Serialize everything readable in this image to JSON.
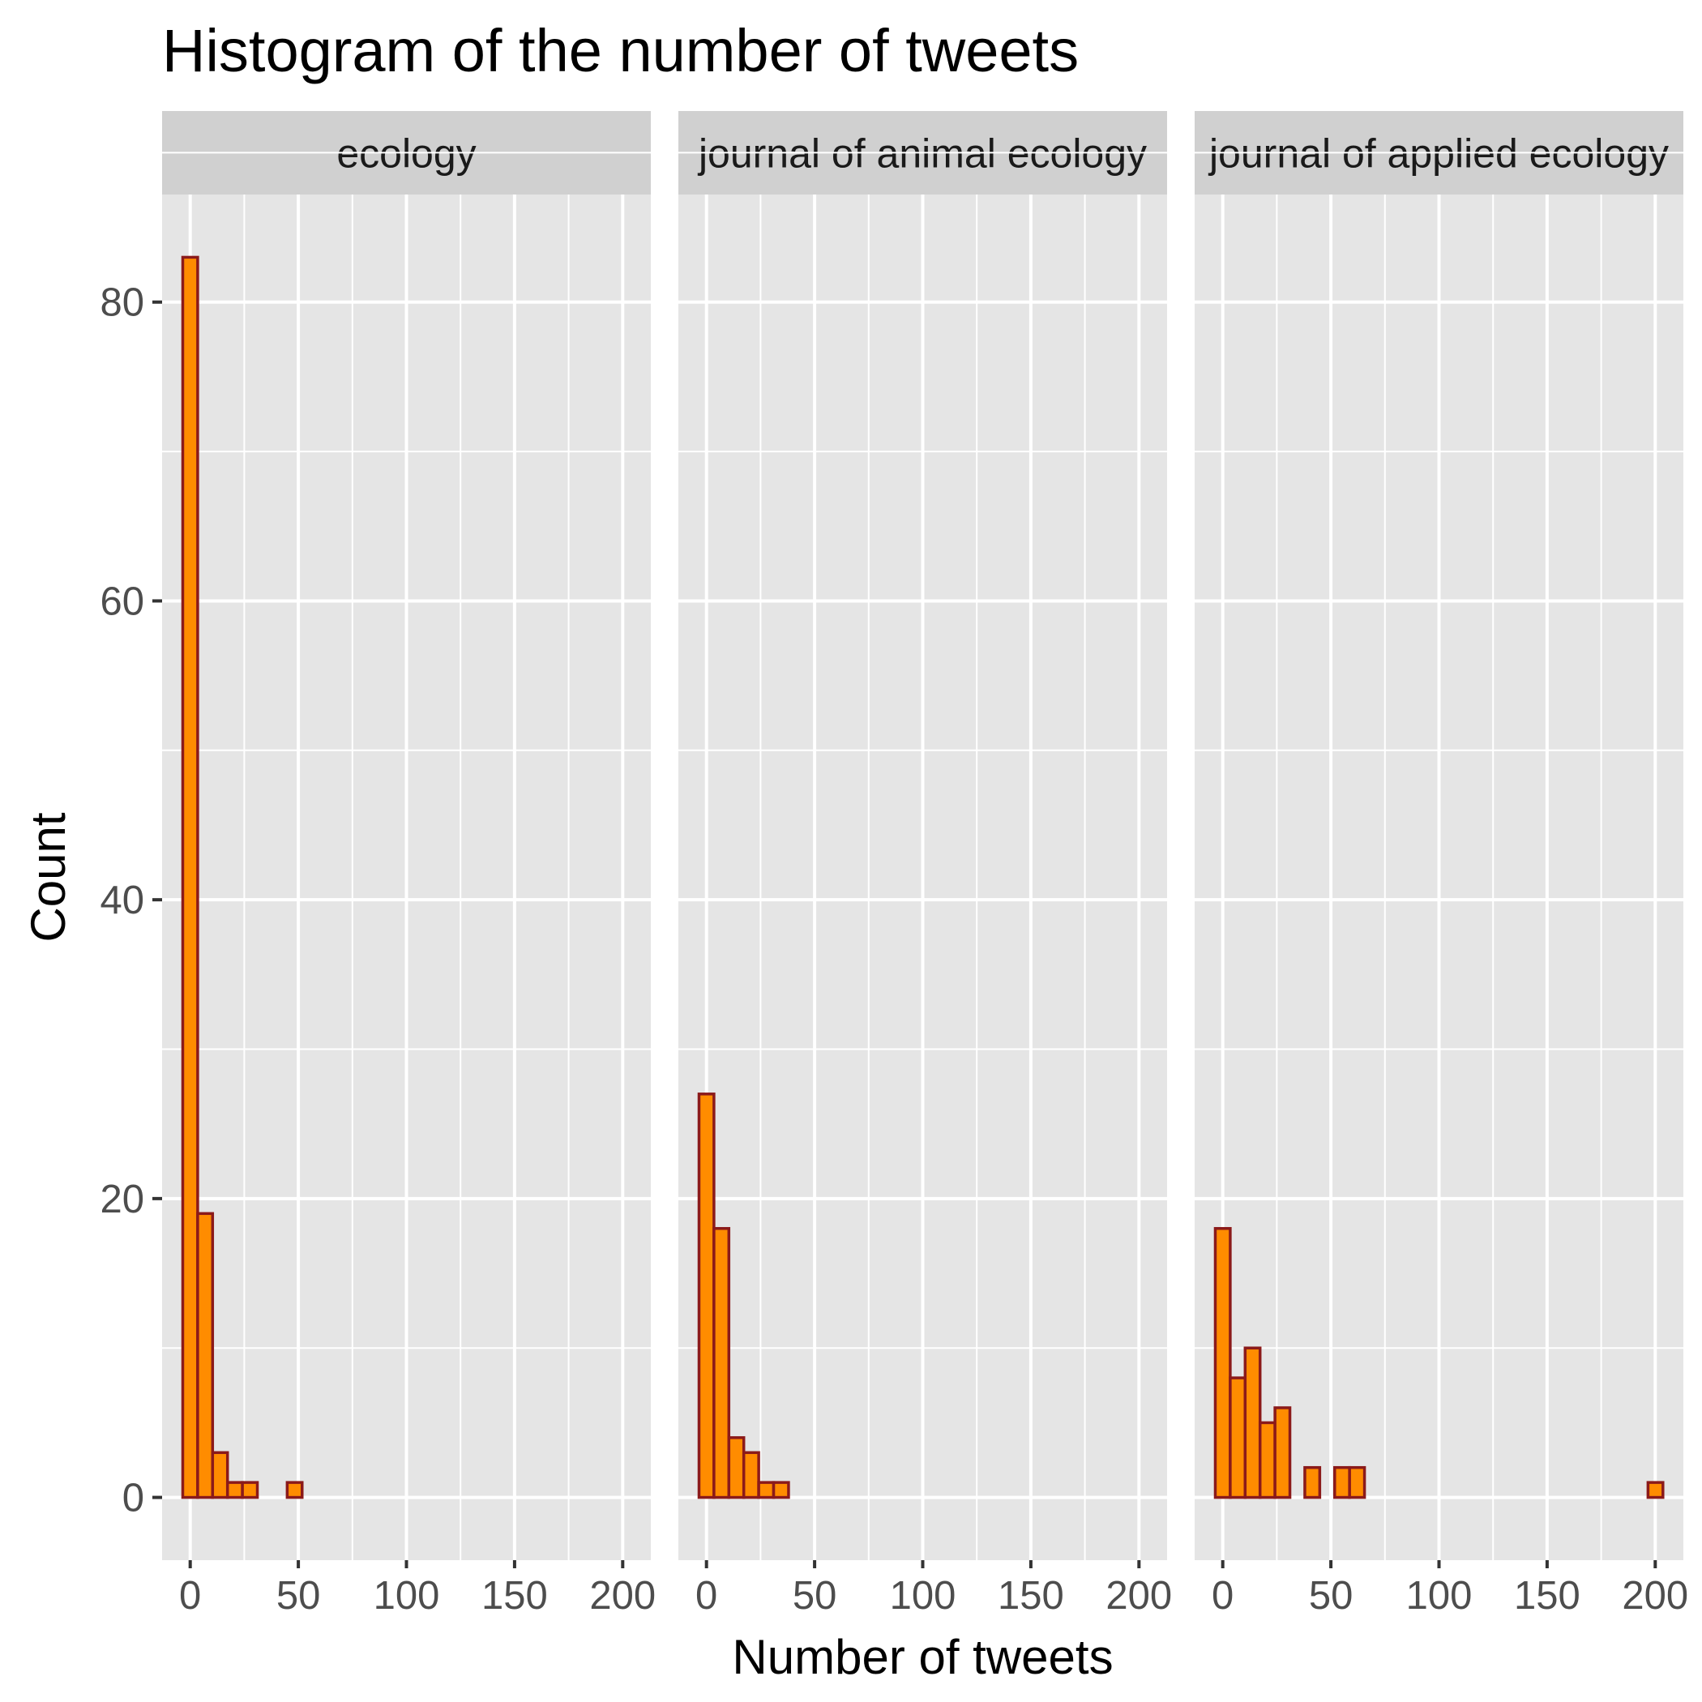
{
  "chart_data": {
    "type": "bar",
    "title": "Histogram of the number of tweets",
    "xlabel": "Number of tweets",
    "ylabel": "Count",
    "xlim": [
      -13,
      213
    ],
    "ylim": [
      -4.2,
      87.2
    ],
    "x_ticks": [
      0,
      50,
      100,
      150,
      200
    ],
    "y_ticks": [
      0,
      20,
      40,
      60,
      80
    ],
    "bin_width": 6.9,
    "bin_start": -3.45,
    "fill_color": "#ff8c00",
    "outline_color": "#8b1a1a",
    "panel_background": "#e5e5e5",
    "strip_background": "#d0d0d0",
    "facets": [
      {
        "label": "ecology",
        "counts": [
          83,
          19,
          3,
          1,
          1,
          0,
          0,
          1,
          0,
          0,
          0,
          0,
          0,
          0,
          0,
          0,
          0,
          0,
          0,
          0,
          0,
          0,
          0,
          0,
          0,
          0,
          0,
          0,
          0,
          0
        ]
      },
      {
        "label": "journal of animal ecology",
        "counts": [
          27,
          18,
          4,
          3,
          1,
          1,
          0,
          0,
          0,
          0,
          0,
          0,
          0,
          0,
          0,
          0,
          0,
          0,
          0,
          0,
          0,
          0,
          0,
          0,
          0,
          0,
          0,
          0,
          0,
          0
        ]
      },
      {
        "label": "journal of applied ecology",
        "counts": [
          18,
          8,
          10,
          5,
          6,
          0,
          2,
          0,
          2,
          2,
          0,
          0,
          0,
          0,
          0,
          0,
          0,
          0,
          0,
          0,
          0,
          0,
          0,
          0,
          0,
          0,
          0,
          0,
          0,
          1
        ]
      }
    ]
  }
}
